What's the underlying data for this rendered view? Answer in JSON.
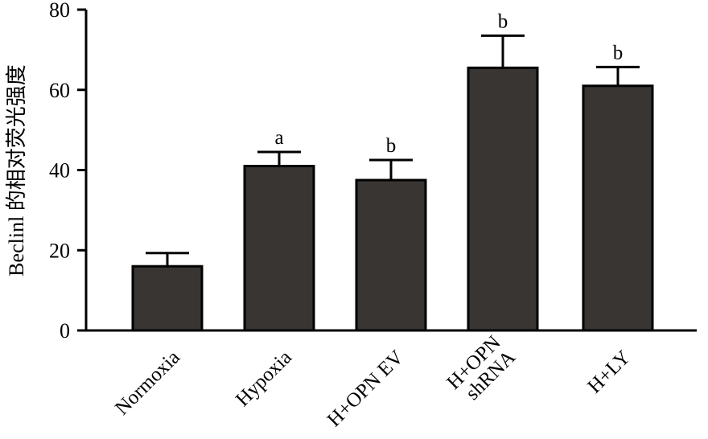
{
  "chart_data": {
    "type": "bar",
    "title": "",
    "xlabel": "",
    "ylabel": "Beclinl 的相对荧光强度",
    "ylim": [
      0,
      80
    ],
    "yticks": [
      0,
      20,
      40,
      60,
      80
    ],
    "categories": [
      [
        "Normoxia"
      ],
      [
        "Hypoxia"
      ],
      [
        "H+OPN EV"
      ],
      [
        "H+OPN",
        "shRNA"
      ],
      [
        "H+LY"
      ]
    ],
    "values": [
      16,
      41,
      37.5,
      65.5,
      61
    ],
    "errors": [
      3.3,
      3.5,
      5,
      8,
      4.7
    ],
    "annotations": [
      "",
      "a",
      "b",
      "b",
      "b"
    ],
    "bar_color": "#383533",
    "grid": false,
    "legend": "none"
  }
}
